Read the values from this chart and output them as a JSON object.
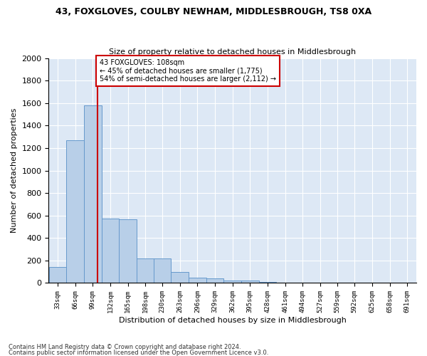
{
  "title1": "43, FOXGLOVES, COULBY NEWHAM, MIDDLESBROUGH, TS8 0XA",
  "title2": "Size of property relative to detached houses in Middlesbrough",
  "xlabel": "Distribution of detached houses by size in Middlesbrough",
  "ylabel": "Number of detached properties",
  "footer1": "Contains HM Land Registry data © Crown copyright and database right 2024.",
  "footer2": "Contains public sector information licensed under the Open Government Licence v3.0.",
  "annotation_line1": "43 FOXGLOVES: 108sqm",
  "annotation_line2": "← 45% of detached houses are smaller (1,775)",
  "annotation_line3": "54% of semi-detached houses are larger (2,112) →",
  "bar_color": "#b8cfe8",
  "bar_edge_color": "#6699cc",
  "red_line_color": "#cc0000",
  "background_color": "#dde8f5",
  "bin_edges": [
    16,
    49,
    82,
    115,
    148,
    181,
    214,
    247,
    280,
    313,
    346,
    379,
    412,
    445,
    478,
    511,
    543,
    576,
    609,
    642,
    675,
    708
  ],
  "bin_centers": [
    33,
    66,
    99,
    132,
    165,
    198,
    230,
    263,
    296,
    329,
    362,
    395,
    428,
    461,
    494,
    527,
    559,
    592,
    625,
    658,
    691
  ],
  "values": [
    140,
    1270,
    1580,
    570,
    565,
    220,
    220,
    95,
    50,
    40,
    25,
    20,
    10,
    5,
    3,
    2,
    1,
    1,
    1,
    1,
    0
  ],
  "property_size": 108,
  "ylim": [
    0,
    2000
  ],
  "yticks": [
    0,
    200,
    400,
    600,
    800,
    1000,
    1200,
    1400,
    1600,
    1800,
    2000
  ]
}
